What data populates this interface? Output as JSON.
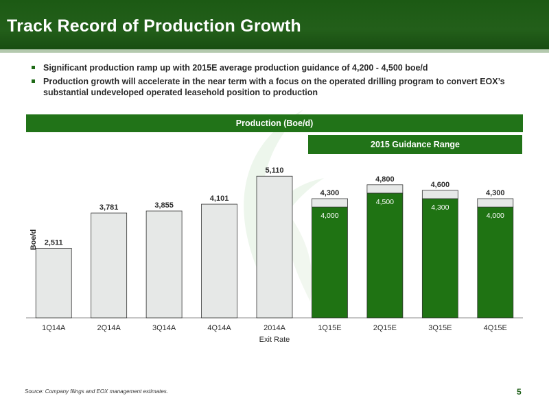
{
  "slide": {
    "title": "Track Record of Production Growth",
    "bullets": [
      "Significant production ramp up with 2015E average production guidance of 4,200 - 4,500 boe/d",
      "Production growth will accelerate in the near term with a focus on the operated drilling program to convert EOX’s substantial undeveloped operated leasehold position to production"
    ],
    "chart_banner": "Production (Boe/d)",
    "guidance_banner": "2015 Guidance Range",
    "source": "Source: Company filings and EOX management estimates.",
    "page_number": "5"
  },
  "colors": {
    "header_green": "#235f1a",
    "actual_bar_fill": "#e6e8e7",
    "estimate_low_fill": "#1f7313",
    "estimate_range_fill": "#e6e8e7"
  },
  "chart_data": {
    "type": "bar",
    "stacked": true,
    "categories": [
      "1Q14A",
      "2Q14A",
      "3Q14A",
      "4Q14A",
      "2014A",
      "1Q15E",
      "2Q15E",
      "3Q15E",
      "4Q15E"
    ],
    "xlabel": "Exit Rate",
    "ylabel": "Boe/d",
    "ylim": [
      0,
      6000
    ],
    "grid": false,
    "legend": "none",
    "series": [
      {
        "values": [
          2511,
          3781,
          3855,
          4101,
          5110,
          4000,
          4500,
          4300,
          4000
        ]
      },
      {
        "values": [
          0,
          0,
          0,
          0,
          0,
          300,
          300,
          300,
          300
        ]
      }
    ],
    "top_labels": [
      "2,511",
      "3,781",
      "3,855",
      "4,101",
      "5,110",
      "4,300",
      "4,800",
      "4,600",
      "4,300"
    ],
    "inner_labels": [
      "",
      "",
      "",
      "",
      "",
      "4,000",
      "4,500",
      "4,300",
      "4,000"
    ]
  }
}
